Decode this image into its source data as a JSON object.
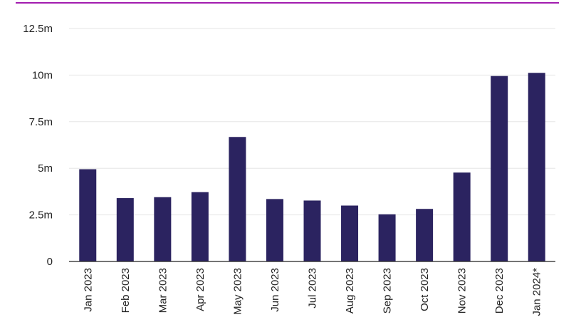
{
  "chart_data": {
    "type": "bar",
    "title": "",
    "xlabel": "",
    "ylabel": "",
    "categories": [
      "Jan 2023",
      "Feb 2023",
      "Mar 2023",
      "Apr 2023",
      "May 2023",
      "Jun 2023",
      "Jul 2023",
      "Aug 2023",
      "Sep 2023",
      "Oct 2023",
      "Nov 2023",
      "Dec 2023",
      "Jan 2024*"
    ],
    "values": [
      4.95,
      3.4,
      3.45,
      3.72,
      6.68,
      3.35,
      3.27,
      3.0,
      2.53,
      2.82,
      4.77,
      9.95,
      10.12
    ],
    "ylim": [
      0,
      12.5
    ],
    "yticks": [
      0,
      2.5,
      5,
      7.5,
      10,
      12.5
    ],
    "ytick_labels": [
      "0",
      "2.5m",
      "5m",
      "7.5m",
      "10m",
      "12.5m"
    ],
    "grid": true,
    "bar_color": "#2b2360",
    "accent_color": "#a21caf"
  }
}
